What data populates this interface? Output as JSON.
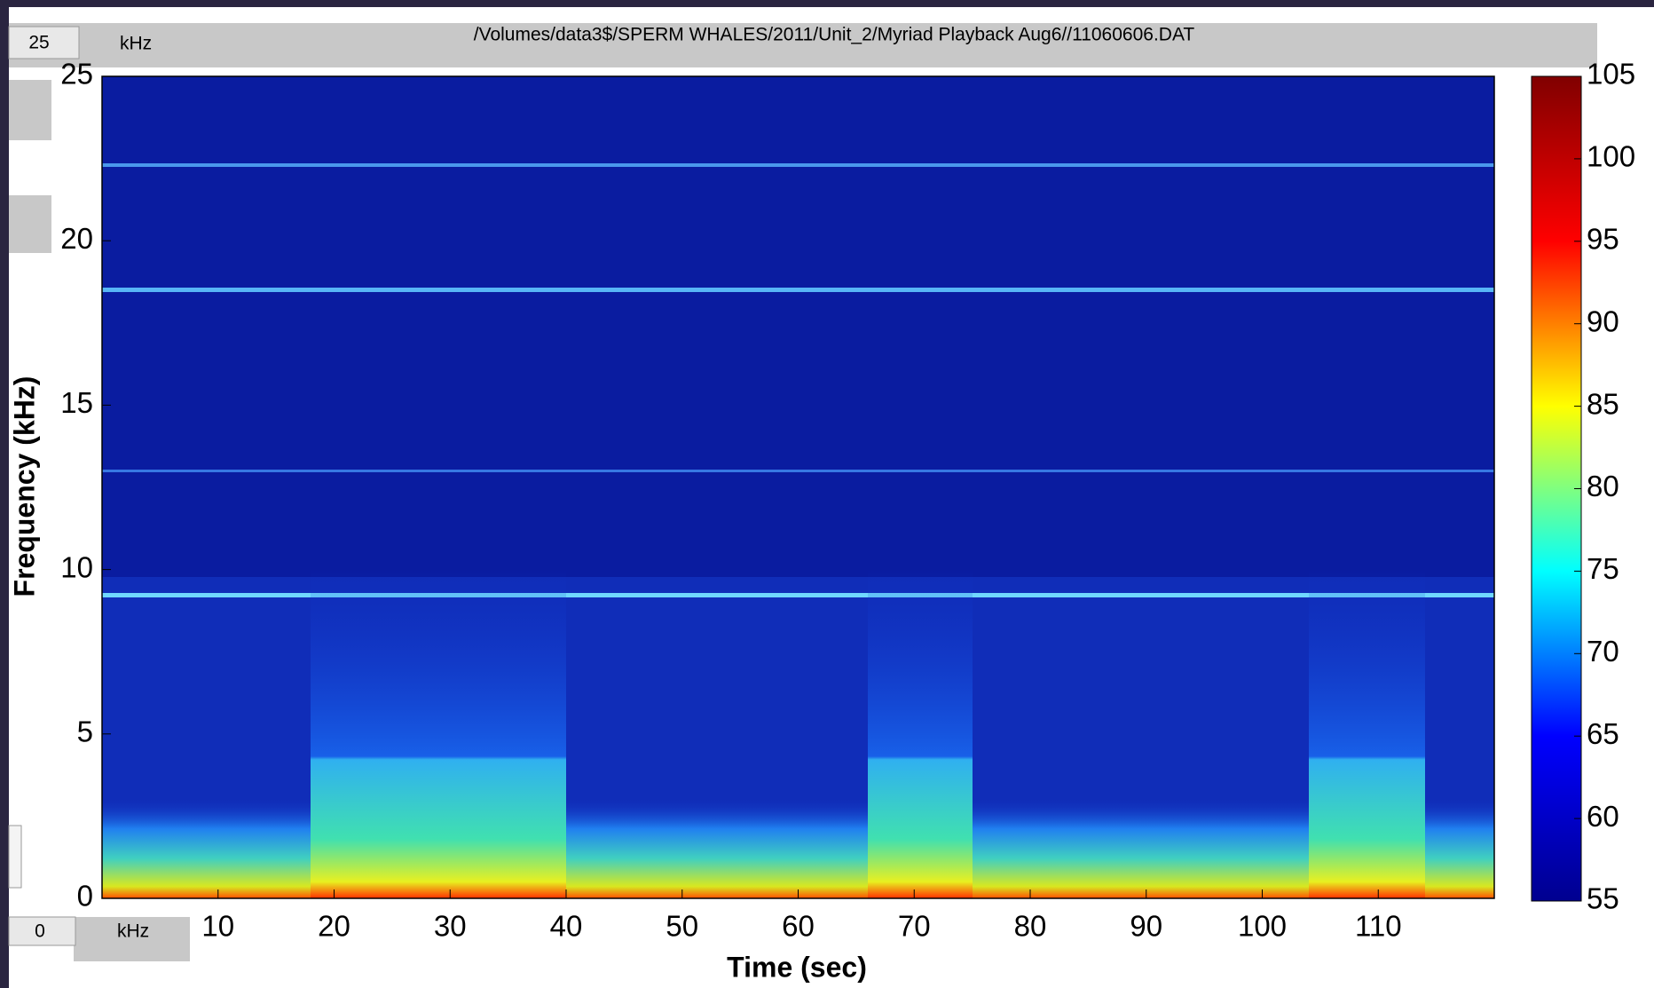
{
  "toolbar": {
    "max_field": "25",
    "max_unit": "kHz",
    "file_path": "/Volumes/data3$/SPERM WHALES/2011/Unit_2/Myriad Playback Aug6//11060606.DAT",
    "min_field": "0",
    "min_unit": "kHz"
  },
  "chart_data": {
    "type": "heatmap",
    "x_label": "Time (sec)",
    "y_label": "Frequency (kHz)",
    "xlim": [
      0,
      120
    ],
    "xticks": [
      10,
      20,
      30,
      40,
      50,
      60,
      70,
      80,
      90,
      100,
      110
    ],
    "ylim": [
      0,
      25
    ],
    "yticks": [
      0,
      5,
      10,
      15,
      20,
      25
    ],
    "colorbar_lim": [
      55,
      105
    ],
    "colorbar_ticks": [
      55,
      60,
      65,
      70,
      75,
      80,
      85,
      90,
      95,
      100,
      105
    ],
    "colormap": [
      "#00008f",
      "#0000ff",
      "#00ffff",
      "#ffff00",
      "#ff0000",
      "#800000"
    ]
  }
}
